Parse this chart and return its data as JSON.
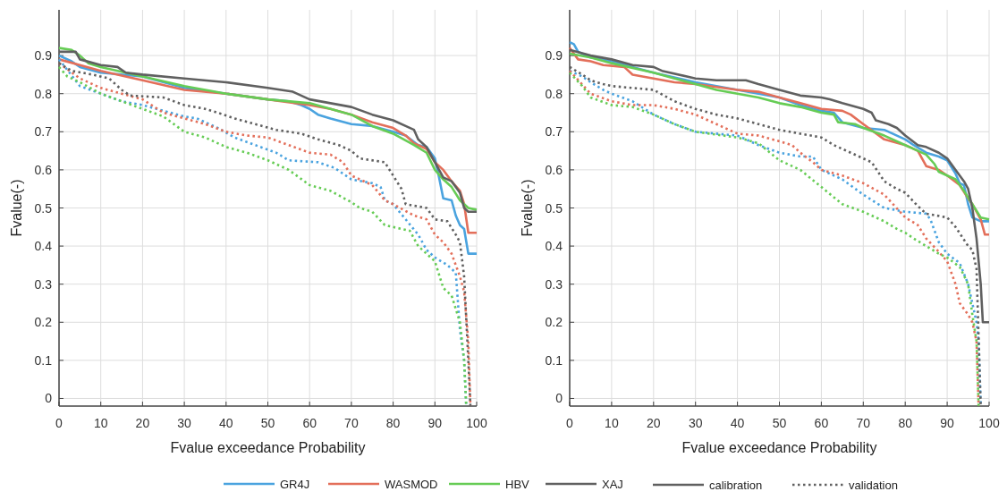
{
  "chart_data": [
    {
      "type": "line",
      "xlabel": "Fvalue exceedance Probability",
      "ylabel": "Fvalue(-)",
      "xlim": [
        0,
        100
      ],
      "ylim": [
        -0.02,
        1.02
      ],
      "xticks": [
        0,
        10,
        20,
        30,
        40,
        50,
        60,
        70,
        80,
        90,
        100
      ],
      "yticks": [
        0,
        0.1,
        0.2,
        0.3,
        0.4,
        0.5,
        0.6,
        0.7,
        0.8,
        0.9
      ],
      "grid": true,
      "legend": "bottom",
      "marker": "none",
      "annotations": [
        "calibration",
        "validation"
      ],
      "series": [
        {
          "name": "GR4J",
          "color": "#4aa3df",
          "line_style": "solid",
          "x": [
            0,
            3,
            5,
            10,
            20,
            30,
            40,
            50,
            55,
            58,
            60,
            62,
            65,
            70,
            75,
            80,
            83,
            86,
            88,
            90,
            91,
            92,
            94,
            95,
            96,
            97,
            98,
            100
          ],
          "values": [
            0.9,
            0.885,
            0.87,
            0.855,
            0.845,
            0.815,
            0.8,
            0.785,
            0.78,
            0.77,
            0.76,
            0.745,
            0.735,
            0.72,
            0.715,
            0.7,
            0.69,
            0.665,
            0.66,
            0.63,
            0.58,
            0.525,
            0.52,
            0.48,
            0.455,
            0.445,
            0.38,
            0.38
          ]
        },
        {
          "name": "WASMOD",
          "color": "#e36f5a",
          "line_style": "solid",
          "x": [
            0,
            5,
            10,
            20,
            30,
            40,
            50,
            60,
            65,
            70,
            75,
            80,
            83,
            85,
            88,
            90,
            92,
            94,
            96,
            97,
            98,
            100
          ],
          "values": [
            0.89,
            0.875,
            0.86,
            0.835,
            0.81,
            0.8,
            0.785,
            0.77,
            0.76,
            0.745,
            0.725,
            0.71,
            0.69,
            0.67,
            0.655,
            0.62,
            0.6,
            0.57,
            0.545,
            0.51,
            0.435,
            0.435
          ]
        },
        {
          "name": "HBV",
          "color": "#66cc55",
          "line_style": "solid",
          "x": [
            0,
            3,
            5,
            7,
            10,
            20,
            30,
            40,
            50,
            60,
            70,
            75,
            80,
            85,
            88,
            90,
            92,
            94,
            96,
            98,
            100
          ],
          "values": [
            0.92,
            0.915,
            0.9,
            0.88,
            0.87,
            0.845,
            0.82,
            0.8,
            0.785,
            0.775,
            0.745,
            0.715,
            0.695,
            0.665,
            0.645,
            0.6,
            0.575,
            0.555,
            0.52,
            0.5,
            0.495
          ]
        },
        {
          "name": "XAJ",
          "color": "#606060",
          "line_style": "solid",
          "x": [
            0,
            4,
            5,
            10,
            14,
            16,
            20,
            30,
            40,
            50,
            56,
            60,
            65,
            70,
            75,
            80,
            83,
            85,
            86,
            88,
            90,
            92,
            94,
            96,
            97,
            98,
            100
          ],
          "values": [
            0.91,
            0.91,
            0.89,
            0.875,
            0.87,
            0.855,
            0.85,
            0.84,
            0.83,
            0.815,
            0.805,
            0.785,
            0.775,
            0.765,
            0.745,
            0.73,
            0.715,
            0.705,
            0.68,
            0.66,
            0.62,
            0.58,
            0.57,
            0.54,
            0.5,
            0.49,
            0.49
          ]
        },
        {
          "color": "#4aa3df",
          "line_style": "dotted",
          "x": [
            0,
            5,
            10,
            15,
            20,
            25,
            30,
            33,
            38,
            42,
            47,
            52,
            55,
            62,
            66,
            70,
            75,
            77,
            78,
            80,
            83,
            86,
            88,
            90,
            93,
            95,
            96,
            97,
            97.5
          ],
          "values": [
            0.89,
            0.82,
            0.8,
            0.78,
            0.77,
            0.755,
            0.74,
            0.735,
            0.71,
            0.685,
            0.665,
            0.645,
            0.625,
            0.62,
            0.605,
            0.575,
            0.565,
            0.555,
            0.52,
            0.51,
            0.47,
            0.43,
            0.39,
            0.37,
            0.35,
            0.33,
            0.18,
            0.1,
            -0.02
          ]
        },
        {
          "color": "#e36f5a",
          "line_style": "dotted",
          "x": [
            0,
            5,
            10,
            15,
            20,
            25,
            30,
            35,
            40,
            45,
            50,
            55,
            60,
            65,
            68,
            70,
            75,
            78,
            80,
            85,
            88,
            90,
            92,
            94,
            96,
            97,
            98,
            98.5
          ],
          "values": [
            0.88,
            0.84,
            0.815,
            0.8,
            0.785,
            0.75,
            0.735,
            0.72,
            0.7,
            0.69,
            0.685,
            0.665,
            0.645,
            0.64,
            0.62,
            0.585,
            0.56,
            0.52,
            0.51,
            0.48,
            0.47,
            0.43,
            0.41,
            0.38,
            0.32,
            0.28,
            0.15,
            -0.02
          ]
        },
        {
          "color": "#66cc55",
          "line_style": "dotted",
          "x": [
            0,
            2,
            5,
            10,
            15,
            20,
            25,
            30,
            35,
            40,
            45,
            50,
            55,
            60,
            65,
            70,
            72,
            75,
            78,
            80,
            84,
            86,
            88,
            90,
            92,
            94,
            96,
            97,
            97.5
          ],
          "values": [
            0.87,
            0.845,
            0.83,
            0.8,
            0.78,
            0.76,
            0.74,
            0.7,
            0.685,
            0.66,
            0.645,
            0.625,
            0.6,
            0.56,
            0.545,
            0.515,
            0.5,
            0.49,
            0.455,
            0.45,
            0.44,
            0.4,
            0.38,
            0.36,
            0.29,
            0.27,
            0.2,
            0.1,
            -0.02
          ]
        },
        {
          "color": "#606060",
          "line_style": "dotted",
          "x": [
            0,
            3,
            8,
            12,
            15,
            17,
            25,
            30,
            35,
            38,
            42,
            47,
            52,
            58,
            62,
            67,
            70,
            72,
            78,
            80,
            82,
            83,
            88,
            90,
            93,
            95,
            96,
            97,
            98,
            98.5
          ],
          "values": [
            0.88,
            0.86,
            0.85,
            0.84,
            0.81,
            0.795,
            0.79,
            0.77,
            0.76,
            0.75,
            0.735,
            0.72,
            0.705,
            0.695,
            0.68,
            0.665,
            0.65,
            0.63,
            0.62,
            0.585,
            0.55,
            0.51,
            0.5,
            0.47,
            0.465,
            0.43,
            0.41,
            0.32,
            0.1,
            -0.02
          ]
        }
      ]
    },
    {
      "type": "line",
      "xlabel": "Fvalue exceedance Probability",
      "ylabel": "Fvalue(-)",
      "xlim": [
        0,
        100
      ],
      "ylim": [
        -0.02,
        1.02
      ],
      "xticks": [
        0,
        10,
        20,
        30,
        40,
        50,
        60,
        70,
        80,
        90,
        100
      ],
      "yticks": [
        0,
        0.1,
        0.2,
        0.3,
        0.4,
        0.5,
        0.6,
        0.7,
        0.8,
        0.9
      ],
      "grid": true,
      "marker": "none",
      "series": [
        {
          "color": "#4aa3df",
          "line_style": "solid",
          "x": [
            0,
            1,
            2,
            5,
            10,
            15,
            20,
            30,
            40,
            45,
            50,
            55,
            60,
            63,
            65,
            70,
            75,
            80,
            82,
            85,
            88,
            90,
            92,
            93,
            94,
            95,
            96,
            98,
            100
          ],
          "values": [
            0.935,
            0.93,
            0.91,
            0.895,
            0.885,
            0.87,
            0.855,
            0.83,
            0.81,
            0.8,
            0.79,
            0.77,
            0.755,
            0.75,
            0.725,
            0.71,
            0.705,
            0.68,
            0.665,
            0.645,
            0.635,
            0.625,
            0.59,
            0.565,
            0.56,
            0.51,
            0.475,
            0.465,
            0.465
          ]
        },
        {
          "color": "#e36f5a",
          "line_style": "solid",
          "x": [
            0,
            2,
            5,
            8,
            13,
            15,
            20,
            25,
            30,
            40,
            45,
            50,
            55,
            60,
            65,
            67,
            70,
            75,
            80,
            83,
            85,
            88,
            90,
            93,
            95,
            96,
            98,
            99,
            100
          ],
          "values": [
            0.92,
            0.89,
            0.885,
            0.875,
            0.87,
            0.85,
            0.84,
            0.83,
            0.825,
            0.81,
            0.805,
            0.79,
            0.775,
            0.76,
            0.755,
            0.745,
            0.72,
            0.68,
            0.665,
            0.65,
            0.61,
            0.6,
            0.585,
            0.56,
            0.525,
            0.51,
            0.47,
            0.43,
            0.43
          ]
        },
        {
          "color": "#66cc55",
          "line_style": "solid",
          "x": [
            0,
            5,
            10,
            20,
            25,
            30,
            35,
            40,
            45,
            50,
            55,
            60,
            63,
            64,
            68,
            70,
            75,
            80,
            83,
            85,
            87,
            88,
            90,
            92,
            94,
            96,
            98,
            100
          ],
          "values": [
            0.905,
            0.895,
            0.88,
            0.855,
            0.84,
            0.825,
            0.81,
            0.8,
            0.79,
            0.775,
            0.765,
            0.75,
            0.745,
            0.725,
            0.72,
            0.71,
            0.69,
            0.665,
            0.65,
            0.64,
            0.615,
            0.595,
            0.585,
            0.575,
            0.545,
            0.51,
            0.475,
            0.47
          ]
        },
        {
          "color": "#606060",
          "line_style": "solid",
          "x": [
            0,
            5,
            10,
            15,
            20,
            22,
            30,
            35,
            42,
            45,
            50,
            55,
            60,
            62,
            65,
            70,
            72,
            73,
            76,
            78,
            80,
            83,
            85,
            88,
            90,
            92,
            94,
            95,
            96,
            97,
            98,
            98.5,
            100
          ],
          "values": [
            0.915,
            0.9,
            0.89,
            0.875,
            0.87,
            0.86,
            0.84,
            0.835,
            0.835,
            0.825,
            0.81,
            0.795,
            0.79,
            0.785,
            0.775,
            0.76,
            0.75,
            0.73,
            0.72,
            0.71,
            0.69,
            0.665,
            0.66,
            0.645,
            0.63,
            0.6,
            0.57,
            0.55,
            0.5,
            0.42,
            0.3,
            0.2,
            0.2
          ]
        },
        {
          "color": "#4aa3df",
          "line_style": "dotted",
          "x": [
            0,
            3,
            5,
            8,
            10,
            15,
            20,
            25,
            30,
            40,
            45,
            50,
            55,
            58,
            60,
            65,
            70,
            75,
            80,
            85,
            86,
            88,
            90,
            93,
            95,
            97,
            97.5,
            98
          ],
          "values": [
            0.86,
            0.845,
            0.83,
            0.81,
            0.8,
            0.78,
            0.745,
            0.72,
            0.7,
            0.69,
            0.665,
            0.645,
            0.635,
            0.635,
            0.6,
            0.575,
            0.535,
            0.5,
            0.49,
            0.485,
            0.47,
            0.41,
            0.38,
            0.355,
            0.3,
            0.2,
            0.15,
            -0.02
          ]
        },
        {
          "color": "#e36f5a",
          "line_style": "dotted",
          "x": [
            0,
            5,
            10,
            15,
            20,
            25,
            30,
            35,
            40,
            45,
            50,
            53,
            55,
            58,
            60,
            65,
            70,
            75,
            80,
            83,
            85,
            88,
            90,
            92,
            93,
            95,
            96,
            97,
            97.5
          ],
          "values": [
            0.86,
            0.8,
            0.78,
            0.77,
            0.77,
            0.76,
            0.745,
            0.72,
            0.695,
            0.69,
            0.675,
            0.665,
            0.645,
            0.62,
            0.6,
            0.585,
            0.565,
            0.535,
            0.475,
            0.455,
            0.42,
            0.385,
            0.36,
            0.3,
            0.25,
            0.22,
            0.2,
            0.15,
            -0.02
          ]
        },
        {
          "color": "#66cc55",
          "line_style": "dotted",
          "x": [
            0,
            3,
            5,
            10,
            15,
            20,
            25,
            30,
            40,
            45,
            50,
            55,
            60,
            65,
            70,
            75,
            78,
            80,
            82,
            85,
            88,
            90,
            93,
            95,
            96,
            97,
            97.5
          ],
          "values": [
            0.855,
            0.82,
            0.79,
            0.77,
            0.765,
            0.745,
            0.72,
            0.7,
            0.685,
            0.67,
            0.625,
            0.6,
            0.555,
            0.51,
            0.49,
            0.465,
            0.445,
            0.435,
            0.42,
            0.4,
            0.38,
            0.37,
            0.345,
            0.3,
            0.22,
            0.15,
            -0.02
          ]
        },
        {
          "color": "#606060",
          "line_style": "dotted",
          "x": [
            0,
            3,
            5,
            8,
            10,
            15,
            20,
            25,
            30,
            35,
            40,
            45,
            50,
            55,
            60,
            63,
            67,
            70,
            72,
            75,
            78,
            80,
            83,
            85,
            90,
            92,
            95,
            96,
            97,
            98
          ],
          "values": [
            0.87,
            0.85,
            0.835,
            0.825,
            0.82,
            0.815,
            0.81,
            0.78,
            0.76,
            0.745,
            0.735,
            0.72,
            0.705,
            0.695,
            0.685,
            0.665,
            0.645,
            0.63,
            0.62,
            0.57,
            0.55,
            0.54,
            0.505,
            0.485,
            0.475,
            0.45,
            0.4,
            0.39,
            0.34,
            -0.02
          ]
        }
      ]
    }
  ]
}
